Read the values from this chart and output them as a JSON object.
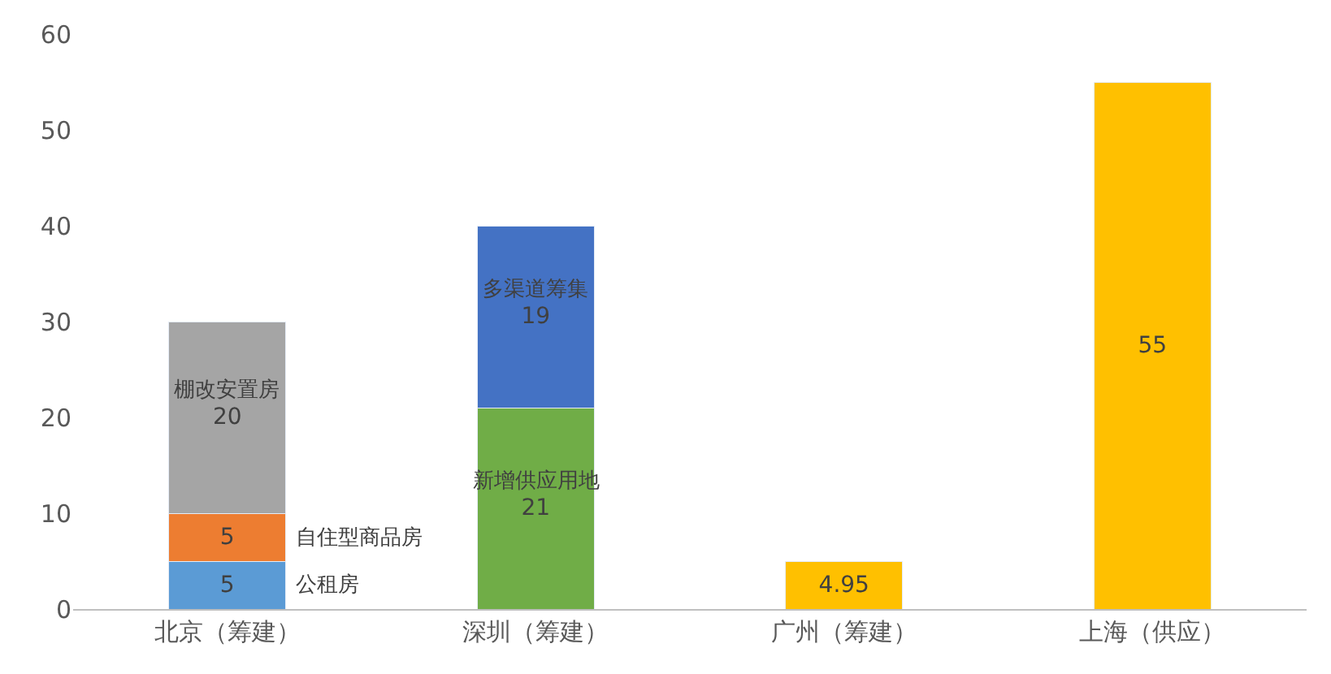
{
  "chart_data": {
    "type": "bar",
    "stacked": true,
    "categories": [
      "北京（筹建）",
      "深圳（筹建）",
      "广州（筹建）",
      "上海（供应）"
    ],
    "series": [
      {
        "name": "公租房",
        "color": "#5b9bd5",
        "values": [
          5,
          null,
          null,
          null
        ]
      },
      {
        "name": "自住型商品房",
        "color": "#ed7d31",
        "values": [
          5,
          null,
          null,
          null
        ]
      },
      {
        "name": "棚改安置房",
        "color": "#a5a5a5",
        "values": [
          20,
          null,
          null,
          null
        ]
      },
      {
        "name": "新增供应用地",
        "color": "#70ad47",
        "values": [
          null,
          21,
          null,
          null
        ]
      },
      {
        "name": "多渠道筹集",
        "color": "#4472c4",
        "values": [
          null,
          19,
          null,
          null
        ]
      },
      {
        "color": "#ffc000",
        "values": [
          null,
          null,
          4.95,
          55
        ]
      }
    ],
    "ylim": [
      0,
      60
    ],
    "yticks": [
      0,
      10,
      20,
      30,
      40,
      50,
      60
    ],
    "grid": false,
    "legend": false,
    "data_labels": true
  }
}
